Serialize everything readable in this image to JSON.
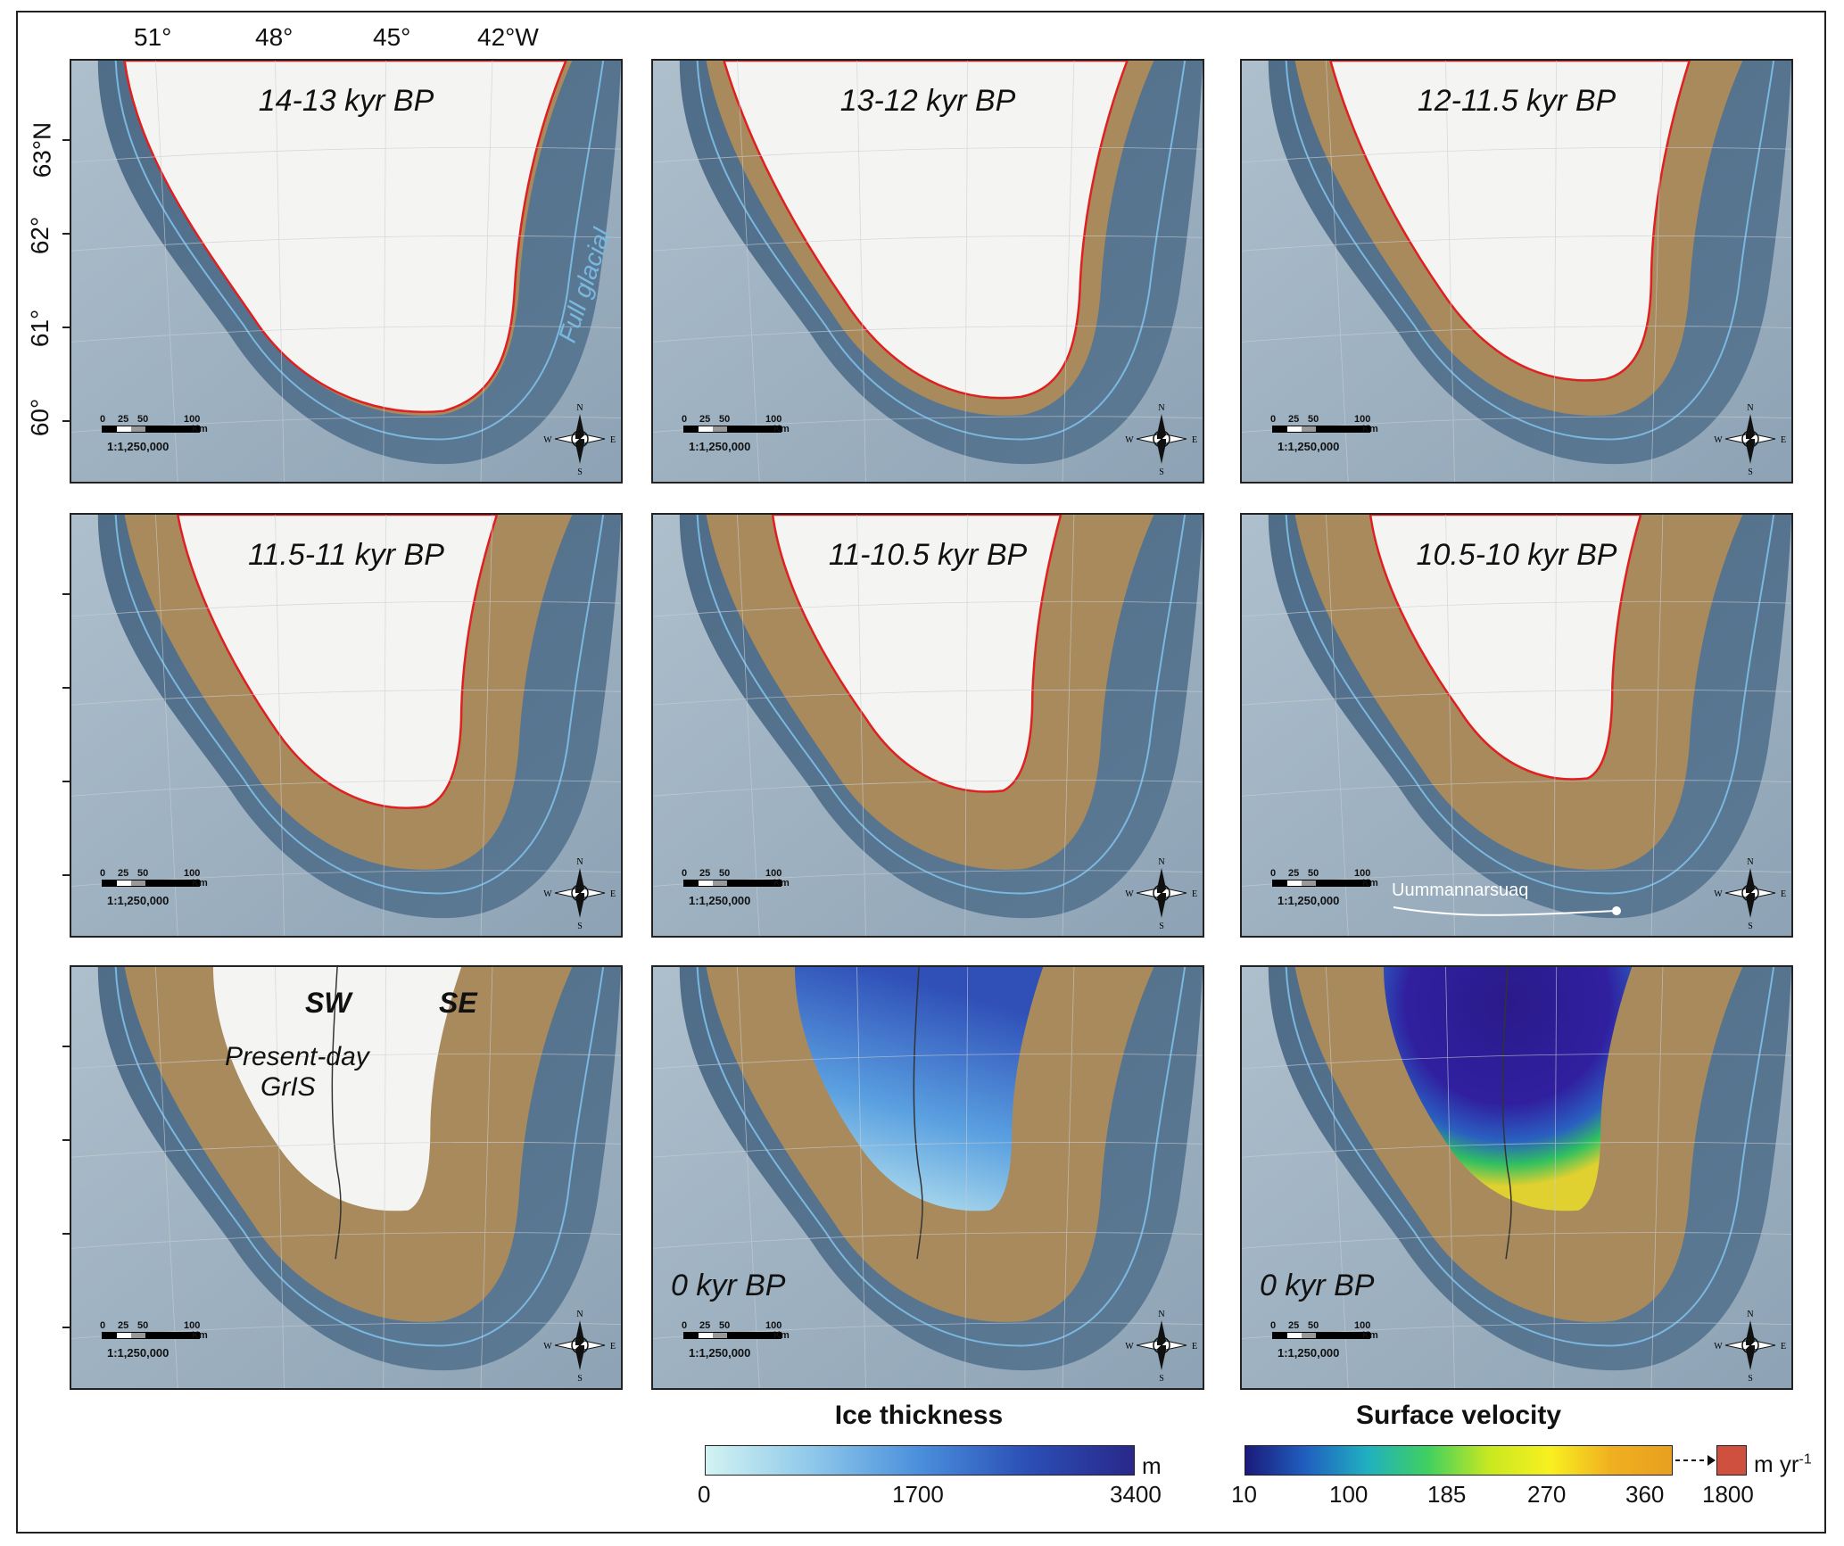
{
  "longitude_labels": [
    "51°",
    "48°",
    "45°",
    "42°W"
  ],
  "latitude_labels": [
    "63°N",
    "62°",
    "61°",
    "60°"
  ],
  "panels": [
    {
      "title": "14-13 kyr BP",
      "stage": 0
    },
    {
      "title": "13-12 kyr BP",
      "stage": 1
    },
    {
      "title": "12-11.5 kyr BP",
      "stage": 2
    },
    {
      "title": "11.5-11 kyr BP",
      "stage": 3
    },
    {
      "title": "11-10.5 kyr BP",
      "stage": 4
    },
    {
      "title": "10.5-10 kyr BP",
      "stage": 5
    },
    {
      "title": "",
      "stage": 6
    },
    {
      "title": "0 kyr BP",
      "stage": 7
    },
    {
      "title": "0 kyr BP",
      "stage": 8
    }
  ],
  "annotations": {
    "full_glacial": "Full glacial",
    "uummannarsuaq": "Uummannarsuaq",
    "sw": "SW",
    "se": "SE",
    "present_day_1": "Present-day",
    "present_day_2": "GrIS"
  },
  "scalebar": {
    "labels": [
      "0",
      "25",
      "50",
      "100"
    ],
    "unit": "Km",
    "ratio": "1:1,250,000"
  },
  "compass": {
    "n": "N",
    "s": "S",
    "e": "E",
    "w": "W"
  },
  "colors": {
    "ocean_deep": "#5d7a95",
    "shelf": "#8fa6b8",
    "land": "#a88a5c",
    "ice": "#f4f5f3",
    "ice_margin": "#e02020",
    "full_glacial_line": "#7ab8e0",
    "ice_thickness_low": "#c8eef0",
    "ice_thickness_high": "#2a2a8c"
  },
  "ice_thickness_legend": {
    "title": "Ice thickness",
    "unit": "m",
    "ticks": [
      "0",
      "1700",
      "3400"
    ]
  },
  "surface_velocity_legend": {
    "title": "Surface velocity",
    "unit": "m yr",
    "unit_exp": "-1",
    "ticks": [
      "10",
      "100",
      "185",
      "270",
      "360",
      "1800"
    ]
  }
}
